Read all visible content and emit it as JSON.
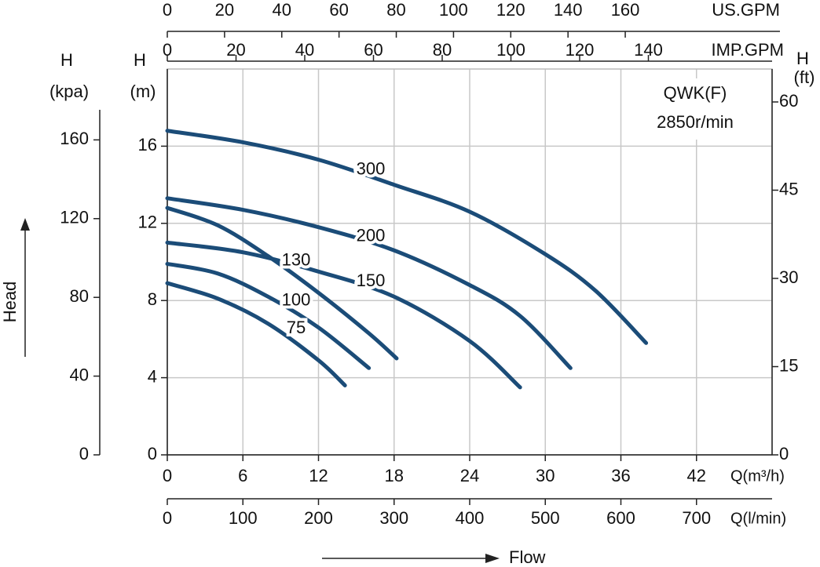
{
  "chart_data": {
    "type": "line",
    "title": "QWK(F)",
    "subtitle": "2850r/min",
    "xlabel": "Q(m³/h)",
    "xlim": [
      0,
      48
    ],
    "xticks": [
      0,
      6,
      12,
      18,
      24,
      30,
      36,
      42
    ],
    "ylabel": [
      "H",
      "(m)"
    ],
    "ylim": [
      0,
      20
    ],
    "yticks": [
      0,
      4,
      8,
      12,
      16
    ],
    "y2label": [
      "H",
      "(ft)"
    ],
    "y2lim": [
      0,
      65.6
    ],
    "y2ticks": [
      0,
      15,
      30,
      45,
      60
    ],
    "y3label": [
      "H",
      "(kpa)"
    ],
    "y3lim": [
      0,
      196
    ],
    "y3ticks": [
      0,
      40,
      80,
      120,
      160
    ],
    "x2label": "US.GPM",
    "x2lim": [
      0,
      211.3
    ],
    "x2ticks": [
      0,
      20,
      40,
      60,
      80,
      100,
      120,
      140,
      160
    ],
    "x3label": "IMP.GPM",
    "x3lim": [
      0,
      176
    ],
    "x3ticks": [
      0,
      20,
      40,
      60,
      80,
      100,
      120,
      140
    ],
    "x4label": "Q(l/min)",
    "x4lim": [
      0,
      800
    ],
    "x4ticks": [
      0,
      100,
      200,
      300,
      400,
      500,
      600,
      700
    ],
    "head_label": "Head",
    "flow_label": "Flow",
    "grid": true,
    "series": [
      {
        "name": "300",
        "color": "#1b4c78",
        "x": [
          0,
          6,
          12,
          18,
          24,
          30,
          34,
          38
        ],
        "values": [
          16.8,
          16.2,
          15.3,
          14.0,
          12.6,
          10.4,
          8.5,
          5.8
        ]
      },
      {
        "name": "200",
        "color": "#1b4c78",
        "x": [
          0,
          6,
          12,
          18,
          24,
          28,
          32
        ],
        "values": [
          13.3,
          12.7,
          11.8,
          10.6,
          8.8,
          7.2,
          4.5
        ]
      },
      {
        "name": "150",
        "color": "#1b4c78",
        "x": [
          0,
          6,
          12,
          18,
          24,
          28
        ],
        "values": [
          11.0,
          10.5,
          9.5,
          8.2,
          5.9,
          3.5
        ]
      },
      {
        "name": "130",
        "color": "#1b4c78",
        "x": [
          0,
          4,
          8,
          12,
          16,
          18.2
        ],
        "values": [
          12.8,
          11.9,
          10.3,
          8.4,
          6.3,
          5.0
        ]
      },
      {
        "name": "100",
        "color": "#1b4c78",
        "x": [
          0,
          4,
          8,
          12,
          16
        ],
        "values": [
          9.9,
          9.4,
          8.2,
          6.6,
          4.5
        ]
      },
      {
        "name": "75",
        "color": "#1b4c78",
        "x": [
          0,
          4,
          8,
          12,
          14.1
        ],
        "values": [
          8.9,
          8.1,
          6.8,
          4.9,
          3.6
        ]
      }
    ]
  }
}
